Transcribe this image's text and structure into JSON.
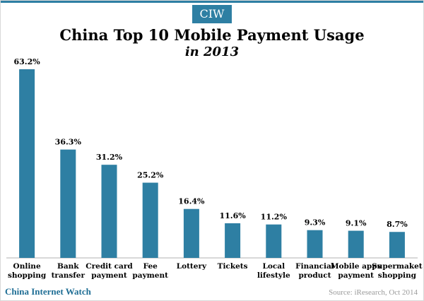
{
  "brand": {
    "badge": "CIW",
    "name": "China Internet Watch"
  },
  "source": "Source: iResearch, Oct 2014",
  "colors": {
    "bar": "#2e7fa3",
    "accent": "#2e7fa3",
    "footer_brand": "#1f6e95"
  },
  "chart_data": {
    "type": "bar",
    "title": "China Top 10 Mobile Payment Usage",
    "subtitle": "in 2013",
    "xlabel": "",
    "ylabel": "",
    "ylim": [
      0,
      63.2
    ],
    "grid": false,
    "legend": "none",
    "categories": [
      [
        "Online",
        "shopping"
      ],
      [
        "Bank",
        "transfer"
      ],
      [
        "Credit card",
        "payment"
      ],
      [
        "Fee",
        "payment"
      ],
      [
        "Lottery"
      ],
      [
        "Tickets"
      ],
      [
        "Local",
        "lifestyle"
      ],
      [
        "Financial",
        "product"
      ],
      [
        "Mobile apps",
        "payment"
      ],
      [
        "Supermaket",
        "shopping"
      ]
    ],
    "values": [
      63.2,
      36.3,
      31.2,
      25.2,
      16.4,
      11.6,
      11.2,
      9.3,
      9.1,
      8.7
    ],
    "value_labels": [
      "63.2%",
      "36.3%",
      "31.2%",
      "25.2%",
      "16.4%",
      "11.6%",
      "11.2%",
      "9.3%",
      "9.1%",
      "8.7%"
    ]
  }
}
